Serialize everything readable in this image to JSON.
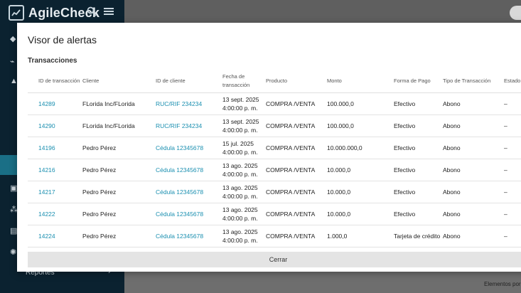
{
  "app": {
    "name": "AgileCheck"
  },
  "sidebar": {
    "reports_label": "Reportes"
  },
  "footer": {
    "elements_per_page": "Elementos por p"
  },
  "modal": {
    "title": "Visor de alertas",
    "section": "Transacciones",
    "close_label": "Cerrar",
    "columns": [
      "ID de transacción",
      "Cliente",
      "ID de cliente",
      "Fecha de transacción",
      "Producto",
      "Monto",
      "Forma de Pago",
      "Tipo de Transacción",
      "Estado"
    ],
    "rows": [
      {
        "id": "14289",
        "client": "FLorida Inc/FLorida",
        "client_id": "RUC/RIF 234234",
        "date": "13 sept. 2025",
        "time": "4:00:00 p. m.",
        "product": "COMPRA /VENTA",
        "amount": "100.000,0",
        "payment": "Efectivo",
        "type": "Abono",
        "status": "–"
      },
      {
        "id": "14290",
        "client": "FLorida Inc/FLorida",
        "client_id": "RUC/RIF 234234",
        "date": "13 sept. 2025",
        "time": "4:00:00 p. m.",
        "product": "COMPRA /VENTA",
        "amount": "100.000,0",
        "payment": "Efectivo",
        "type": "Abono",
        "status": "–"
      },
      {
        "id": "14196",
        "client": "Pedro Pérez",
        "client_id": "Cédula 12345678",
        "date": "15 jul. 2025",
        "time": "4:00:00 p. m.",
        "product": "COMPRA /VENTA",
        "amount": "10.000.000,0",
        "payment": "Efectivo",
        "type": "Abono",
        "status": "–"
      },
      {
        "id": "14216",
        "client": "Pedro Pérez",
        "client_id": "Cédula 12345678",
        "date": "13 ago. 2025",
        "time": "4:00:00 p. m.",
        "product": "COMPRA /VENTA",
        "amount": "10.000,0",
        "payment": "Efectivo",
        "type": "Abono",
        "status": "–"
      },
      {
        "id": "14217",
        "client": "Pedro Pérez",
        "client_id": "Cédula 12345678",
        "date": "13 ago. 2025",
        "time": "4:00:00 p. m.",
        "product": "COMPRA /VENTA",
        "amount": "10.000,0",
        "payment": "Efectivo",
        "type": "Abono",
        "status": "–"
      },
      {
        "id": "14222",
        "client": "Pedro Pérez",
        "client_id": "Cédula 12345678",
        "date": "13 ago. 2025",
        "time": "4:00:00 p. m.",
        "product": "COMPRA /VENTA",
        "amount": "10.000,0",
        "payment": "Efectivo",
        "type": "Abono",
        "status": "–"
      },
      {
        "id": "14224",
        "client": "Pedro Pérez",
        "client_id": "Cédula 12345678",
        "date": "13 ago. 2025",
        "time": "4:00:00 p. m.",
        "product": "COMPRA /VENTA",
        "amount": "1.000,0",
        "payment": "Tarjeta de crédito",
        "type": "Abono",
        "status": "–"
      }
    ]
  },
  "icons": {
    "logo": "logo-icon",
    "search": "search-icon",
    "menu": "menu-icon"
  }
}
